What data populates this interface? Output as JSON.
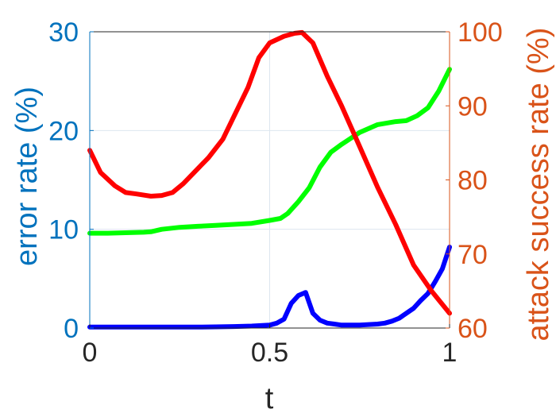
{
  "chart_data": {
    "type": "line",
    "xlabel": "t",
    "ylabel_left": "error rate (%)",
    "ylabel_right": "attack success rate (%)",
    "xlim": [
      0,
      1
    ],
    "ylim_left": [
      0,
      30
    ],
    "ylim_right": [
      60,
      100
    ],
    "x_ticks": [
      "0",
      "0.5",
      "1"
    ],
    "y_left_ticks": [
      "0",
      "10",
      "20",
      "30"
    ],
    "y_right_ticks": [
      "60",
      "70",
      "80",
      "90",
      "100"
    ],
    "grid": true,
    "colors": {
      "left_axis": "#0072BD",
      "right_axis": "#D95319",
      "blue_series": "#0000ff",
      "green_series": "#00ff00",
      "red_series": "#ff0000",
      "grid": "#dde6ef"
    },
    "series": [
      {
        "color": "#0000ff",
        "axis": "left",
        "x": [
          0,
          0.05,
          0.1,
          0.15,
          0.2,
          0.25,
          0.3,
          0.35,
          0.4,
          0.45,
          0.5,
          0.52,
          0.54,
          0.56,
          0.58,
          0.6,
          0.62,
          0.64,
          0.66,
          0.68,
          0.7,
          0.75,
          0.8,
          0.82,
          0.84,
          0.86,
          0.88,
          0.9,
          0.92,
          0.94,
          0.96,
          0.98,
          1.0
        ],
        "y": [
          0.1,
          0.1,
          0.1,
          0.1,
          0.1,
          0.1,
          0.1,
          0.12,
          0.15,
          0.2,
          0.3,
          0.5,
          0.9,
          2.5,
          3.3,
          3.6,
          1.5,
          0.8,
          0.5,
          0.4,
          0.3,
          0.3,
          0.4,
          0.5,
          0.7,
          1.0,
          1.5,
          2.0,
          2.8,
          3.5,
          4.7,
          6.0,
          8.2
        ]
      },
      {
        "color": "#00ff00",
        "axis": "left",
        "x": [
          0,
          0.05,
          0.1,
          0.15,
          0.17,
          0.2,
          0.25,
          0.3,
          0.35,
          0.4,
          0.45,
          0.5,
          0.53,
          0.55,
          0.58,
          0.61,
          0.64,
          0.67,
          0.7,
          0.75,
          0.8,
          0.85,
          0.88,
          0.91,
          0.94,
          0.97,
          1.0
        ],
        "y": [
          9.6,
          9.6,
          9.65,
          9.7,
          9.75,
          10.0,
          10.2,
          10.3,
          10.4,
          10.5,
          10.6,
          10.9,
          11.1,
          11.6,
          12.8,
          14.2,
          16.3,
          17.8,
          18.6,
          19.8,
          20.6,
          20.9,
          21.0,
          21.5,
          22.3,
          24.0,
          26.2
        ]
      },
      {
        "color": "#ff0000",
        "axis": "right",
        "x": [
          0,
          0.03,
          0.07,
          0.1,
          0.13,
          0.17,
          0.2,
          0.23,
          0.26,
          0.3,
          0.33,
          0.37,
          0.4,
          0.44,
          0.47,
          0.5,
          0.54,
          0.57,
          0.59,
          0.62,
          0.66,
          0.7,
          0.75,
          0.8,
          0.85,
          0.9,
          0.95,
          1.0
        ],
        "y": [
          84.0,
          81.0,
          79.2,
          78.3,
          78.1,
          77.8,
          77.9,
          78.3,
          79.5,
          81.5,
          83.0,
          85.5,
          88.5,
          92.5,
          96.5,
          98.5,
          99.4,
          99.8,
          99.9,
          98.5,
          94.0,
          90.0,
          84.5,
          79.0,
          74.0,
          68.5,
          65.0,
          62.0
        ]
      }
    ]
  }
}
